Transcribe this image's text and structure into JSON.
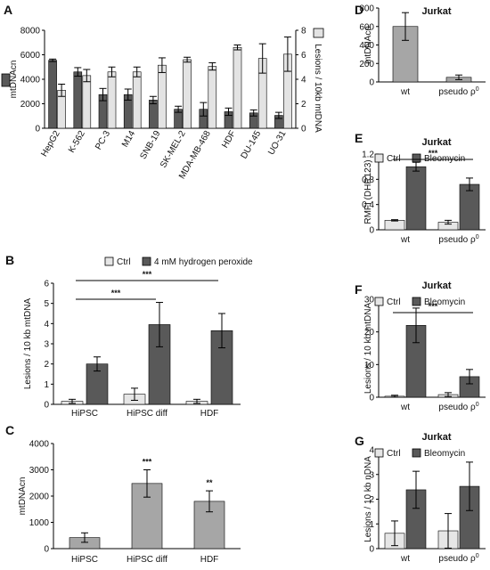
{
  "colors": {
    "dark": "#595959",
    "light": "#e3e3e3",
    "mid": "#a6a6a6",
    "ctrl": "#e6e6e6",
    "axis": "#000000"
  },
  "chart_data": [
    {
      "panel": "A",
      "type": "bar",
      "categories": [
        "HepG2",
        "K-562",
        "PC-3",
        "M14",
        "SNB-19",
        "SK-MEL-2",
        "MDA-MB-468",
        "HDF",
        "DU-145",
        "UO-31"
      ],
      "series": [
        {
          "name": "mtDNAcn",
          "axis": "left",
          "values": [
            5550,
            4600,
            2750,
            2750,
            2300,
            1550,
            1550,
            1350,
            1250,
            1050
          ],
          "errors": [
            100,
            350,
            500,
            450,
            300,
            250,
            550,
            300,
            250,
            250
          ]
        },
        {
          "name": "Lesions / 10kb mtDNA",
          "axis": "right",
          "values": [
            3.1,
            4.3,
            4.6,
            4.6,
            5.15,
            5.6,
            5.05,
            6.6,
            5.7,
            6.05
          ],
          "errors": [
            0.5,
            0.5,
            0.4,
            0.4,
            0.6,
            0.2,
            0.3,
            0.2,
            1.2,
            1.4
          ]
        }
      ],
      "ylabel": "mtDNAcn",
      "ylabel_right": "Lesions / 10kb mtDNA",
      "ylim": [
        0,
        8000
      ],
      "ylim_right": [
        0,
        8
      ],
      "yticks": [
        "0",
        "2000",
        "4000",
        "6000",
        "8000"
      ],
      "yticks_right": [
        "0",
        "2",
        "4",
        "6",
        "8"
      ]
    },
    {
      "panel": "B",
      "type": "bar",
      "categories": [
        "HiPSC",
        "HiPSC diff",
        "HDF"
      ],
      "series": [
        {
          "name": "Ctrl",
          "values": [
            0.15,
            0.5,
            0.15
          ],
          "errors": [
            0.1,
            0.3,
            0.1
          ]
        },
        {
          "name": "4 mM hydrogen peroxide",
          "values": [
            2.0,
            3.95,
            3.65
          ],
          "errors": [
            0.35,
            1.1,
            0.85
          ]
        }
      ],
      "ylabel": "Lesions / 10 kb mtDNA",
      "ylim": [
        0,
        6
      ],
      "yticks": [
        "0",
        "1",
        "2",
        "3",
        "4",
        "5",
        "6"
      ],
      "significance": [
        "***",
        "***"
      ]
    },
    {
      "panel": "C",
      "type": "bar",
      "categories": [
        "HiPSC",
        "HiPSC diff",
        "HDF"
      ],
      "series": [
        {
          "name": "mtDNAcn",
          "values": [
            420,
            2480,
            1800
          ],
          "errors": [
            180,
            520,
            400
          ]
        }
      ],
      "ylabel": "mtDNAcn",
      "ylim": [
        0,
        4000
      ],
      "yticks": [
        "0",
        "1000",
        "2000",
        "3000",
        "4000"
      ],
      "bar_labels": [
        "",
        "***",
        "**"
      ]
    },
    {
      "panel": "D",
      "type": "bar",
      "title": "Jurkat",
      "categories": [
        "wt",
        "pseudo ρ"
      ],
      "category_sup": [
        "",
        "0"
      ],
      "series": [
        {
          "name": "mtDNAcn",
          "values": [
            600,
            50
          ],
          "errors": [
            150,
            25
          ]
        }
      ],
      "ylabel": "mtDNAcn",
      "ylim": [
        0,
        800
      ],
      "yticks": [
        "0",
        "200",
        "400",
        "600",
        "800"
      ]
    },
    {
      "panel": "E",
      "type": "bar",
      "title": "Jurkat",
      "categories": [
        "wt",
        "pseudo ρ"
      ],
      "category_sup": [
        "",
        "0"
      ],
      "series": [
        {
          "name": "Ctrl",
          "values": [
            0.15,
            0.12
          ],
          "errors": [
            0.01,
            0.03
          ]
        },
        {
          "name": "Bleomycin",
          "values": [
            1.0,
            0.72
          ],
          "errors": [
            0.07,
            0.1
          ]
        }
      ],
      "ylabel": "RMFI (DHR123)",
      "ylim": [
        0,
        1.2
      ],
      "yticks": [
        "0",
        "0.4",
        "0.8",
        "1.2"
      ],
      "significance": [
        "***"
      ]
    },
    {
      "panel": "F",
      "type": "bar",
      "title": "Jurkat",
      "categories": [
        "wt",
        "pseudo ρ"
      ],
      "category_sup": [
        "",
        "0"
      ],
      "series": [
        {
          "name": "Ctrl",
          "values": [
            0.3,
            0.8
          ],
          "errors": [
            0.3,
            0.6
          ]
        },
        {
          "name": "Bleomycin",
          "values": [
            22,
            6.3
          ],
          "errors": [
            5.3,
            2.2
          ]
        }
      ],
      "ylabel": "Lesions / 10 kb mtDNA",
      "ylim": [
        0,
        30
      ],
      "yticks": [
        "0",
        "10",
        "20",
        "30"
      ],
      "significance": [
        "***"
      ]
    },
    {
      "panel": "G",
      "type": "bar",
      "title": "Jurkat",
      "categories": [
        "wt",
        "pseudo ρ"
      ],
      "category_sup": [
        "",
        "0"
      ],
      "series": [
        {
          "name": "Ctrl",
          "values": [
            0.62,
            0.72
          ],
          "errors": [
            0.5,
            0.7
          ]
        },
        {
          "name": "Bleomycin",
          "values": [
            2.38,
            2.52
          ],
          "errors": [
            0.75,
            0.98
          ]
        }
      ],
      "ylabel": "Lesions / 10 kb nDNA",
      "ylim": [
        0,
        4
      ],
      "yticks": [
        "0",
        "1",
        "2",
        "3",
        "4"
      ]
    }
  ]
}
